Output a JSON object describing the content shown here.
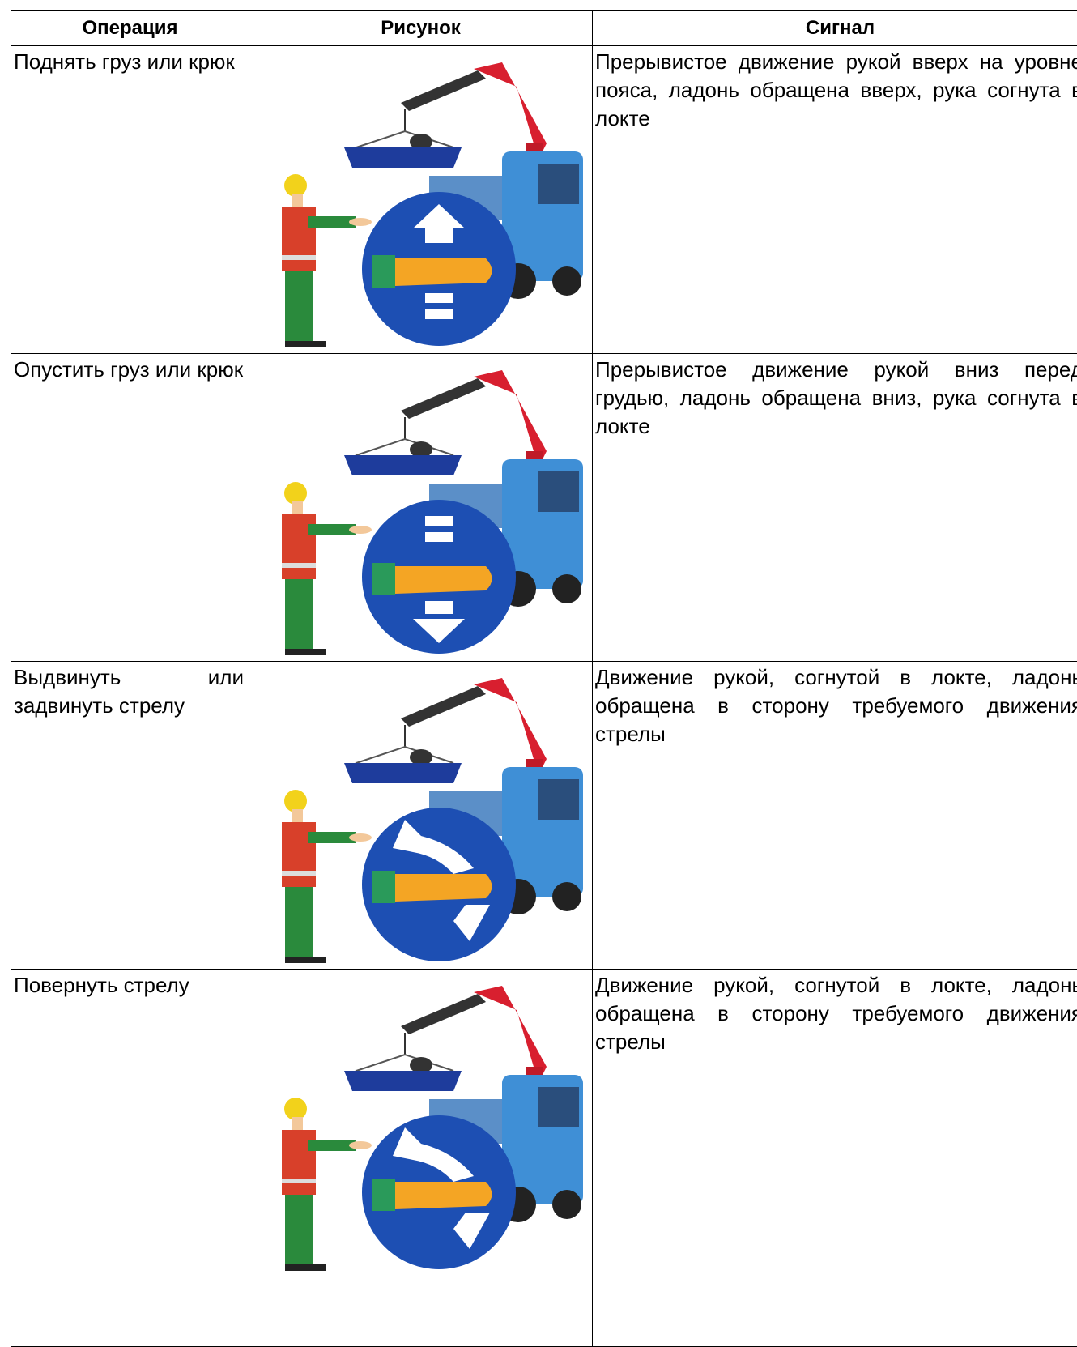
{
  "table": {
    "header": [
      "Операция",
      "Рисунок",
      "Сигнал"
    ],
    "rows": [
      {
        "operation": "Поднять груз или крюк",
        "signal": "Прерывистое движение рукой вверх на уровне пояса, ладонь обращена вверх, рука согнута в локте"
      },
      {
        "operation": "Опустить груз или крюк",
        "signal": "Прерывистое движение рукой вниз перед грудью, ладонь обращена вниз, рука согнута в локте"
      },
      {
        "operation": "Выдвинуть или задвинуть стрелу",
        "signal": "Движение рукой, согнутой в локте, ладонь обращена в сторону требуемого движения стрелы"
      },
      {
        "operation": "Повернуть стрелу",
        "signal": "Движение рукой, согнутой в локте, ладонь обращена в сторону требуемого движения стрелы"
      }
    ]
  }
}
